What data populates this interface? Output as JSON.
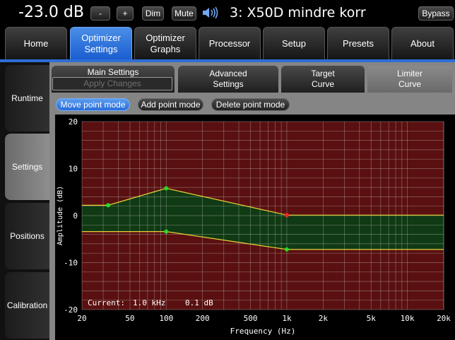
{
  "topbar": {
    "volume": "-23.0 dB",
    "minus_label": "-",
    "plus_label": "+",
    "dim_label": "Dim",
    "mute_label": "Mute",
    "preset_name": "3: X50D mindre korr",
    "bypass_label": "Bypass"
  },
  "nav": {
    "home": "Home",
    "optimizer_settings_1": "Optimizer",
    "optimizer_settings_2": "Settings",
    "optimizer_graphs_1": "Optimizer",
    "optimizer_graphs_2": "Graphs",
    "processor": "Processor",
    "setup": "Setup",
    "presets": "Presets",
    "about": "About"
  },
  "sidebar": {
    "runtime": "Runtime",
    "settings": "Settings",
    "positions": "Positions",
    "calibration": "Calibration"
  },
  "subtabs": {
    "main_settings": "Main Settings",
    "apply_changes": "Apply Changes",
    "advanced_1": "Advanced",
    "advanced_2": "Settings",
    "target_1": "Target",
    "target_2": "Curve",
    "limiter_1": "Limiter",
    "limiter_2": "Curve"
  },
  "modes": {
    "move": "Move point mode",
    "add": "Add point mode",
    "delete": "Delete point mode"
  },
  "colors": {
    "accent": "#2d6fd6",
    "chart_outside": "#5a1010",
    "chart_inside": "#103a14",
    "curve": "#e8d23a",
    "point": "#22dd22",
    "point_selected": "#ff2222"
  },
  "chart_data": {
    "type": "line",
    "xlabel": "Frequency (Hz)",
    "ylabel": "Amplitude (dB)",
    "xscale": "log",
    "xlim": [
      20,
      20000
    ],
    "ylim": [
      -20,
      20
    ],
    "x_ticks": [
      20,
      50,
      100,
      200,
      500,
      1000,
      2000,
      5000,
      10000,
      20000
    ],
    "x_tick_labels": [
      "20",
      "50",
      "100",
      "200",
      "500",
      "1k",
      "2k",
      "5k",
      "10k",
      "20k"
    ],
    "y_ticks": [
      -20,
      -10,
      0,
      10,
      20
    ],
    "y_tick_labels": [
      "-20",
      "-10",
      "0",
      "10",
      "20"
    ],
    "grid": true,
    "series": [
      {
        "points": [
          [
            20,
            2.2
          ],
          [
            33,
            2.2
          ],
          [
            100,
            5.8
          ],
          [
            1000,
            0.1
          ],
          [
            20000,
            0.1
          ]
        ],
        "handles": [
          [
            33,
            2.2
          ],
          [
            100,
            5.8
          ],
          [
            1000,
            0.1
          ]
        ]
      },
      {
        "points": [
          [
            20,
            -3.4
          ],
          [
            100,
            -3.4
          ],
          [
            1000,
            -7.2
          ],
          [
            20000,
            -7.2
          ]
        ],
        "handles": [
          [
            100,
            -3.4
          ],
          [
            1000,
            -7.2
          ]
        ]
      }
    ],
    "selected_point": [
      1000,
      0.1
    ],
    "readout_label": "Current:",
    "readout_freq": "1.0 kHz",
    "readout_value": "0.1 dB"
  }
}
